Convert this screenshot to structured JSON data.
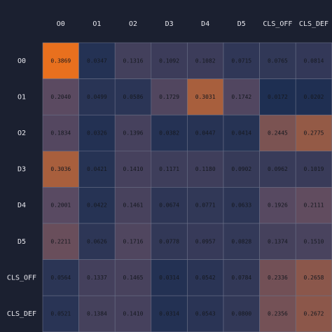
{
  "chart_data": {
    "type": "heatmap",
    "x_labels": [
      "O0",
      "O1",
      "O2",
      "D3",
      "D4",
      "D5",
      "CLS_OFF",
      "CLS_DEF"
    ],
    "y_labels": [
      "O0",
      "O1",
      "O2",
      "D3",
      "D4",
      "D5",
      "CLS_OFF",
      "CLS_DEF"
    ],
    "values": [
      [
        "0.3869",
        "0.0347",
        "0.1316",
        "0.1092",
        "0.1082",
        "0.0715",
        "0.0765",
        "0.0814"
      ],
      [
        "0.2040",
        "0.0499",
        "0.0586",
        "0.1729",
        "0.3031",
        "0.1742",
        "0.0172",
        "0.0202"
      ],
      [
        "0.1834",
        "0.0326",
        "0.1396",
        "0.0382",
        "0.0447",
        "0.0414",
        "0.2445",
        "0.2775"
      ],
      [
        "0.3036",
        "0.0421",
        "0.1410",
        "0.1171",
        "0.1180",
        "0.0902",
        "0.0962",
        "0.1019"
      ],
      [
        "0.2001",
        "0.0422",
        "0.1461",
        "0.0674",
        "0.0771",
        "0.0633",
        "0.1926",
        "0.2111"
      ],
      [
        "0.2211",
        "0.0626",
        "0.1716",
        "0.0778",
        "0.0957",
        "0.0828",
        "0.1374",
        "0.1510"
      ],
      [
        "0.0564",
        "0.1337",
        "0.1465",
        "0.0314",
        "0.0542",
        "0.0784",
        "0.2336",
        "0.2658"
      ],
      [
        "0.0521",
        "0.1384",
        "0.1410",
        "0.0314",
        "0.0543",
        "0.0800",
        "0.2356",
        "0.2672"
      ]
    ],
    "value_range": [
      0.0172,
      0.3869
    ],
    "colors": {
      "background": "#1b2030",
      "low": "#1e2f52",
      "mid": "#5a4a62",
      "high": "#e8701e"
    }
  }
}
